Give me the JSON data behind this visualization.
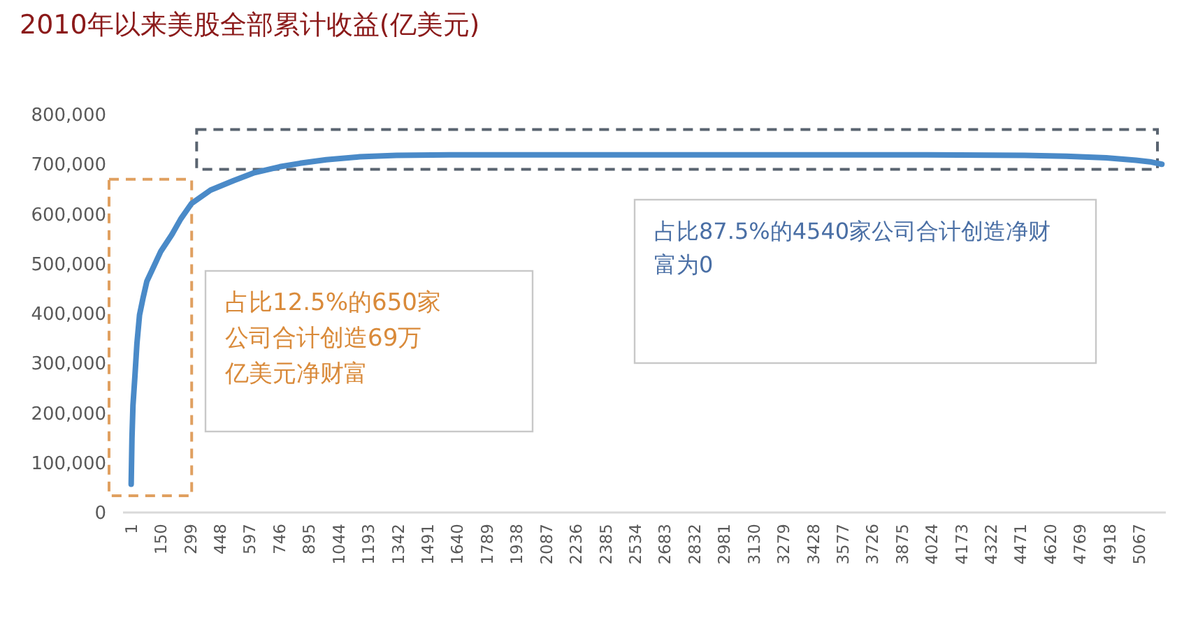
{
  "chart_data": {
    "type": "line",
    "title": "2010年以来美股全部累计收益(亿美元)",
    "x": [
      1,
      5,
      10,
      20,
      30,
      43,
      60,
      80,
      114,
      150,
      206,
      250,
      304,
      400,
      515,
      620,
      748,
      850,
      981,
      1150,
      1334,
      1600,
      2000,
      2500,
      3000,
      3500,
      4000,
      4490,
      4700,
      4900,
      5050,
      5120,
      5180
    ],
    "series": [
      {
        "color": "#4a8ac8",
        "values": [
          57000,
          150000,
          215000,
          275000,
          340000,
          397000,
          430000,
          465000,
          494000,
          525000,
          559000,
          590000,
          621000,
          648000,
          667000,
          683000,
          695000,
          702000,
          709000,
          715000,
          718000,
          719000,
          719000,
          719000,
          719000,
          719000,
          719000,
          718000,
          716000,
          713000,
          708000,
          705000,
          700000
        ]
      }
    ],
    "xlim": [
      -40,
      5200
    ],
    "xticks": [
      1,
      150,
      299,
      448,
      597,
      746,
      895,
      1044,
      1193,
      1342,
      1491,
      1640,
      1789,
      1938,
      2087,
      2236,
      2385,
      2534,
      2683,
      2832,
      2981,
      3130,
      3279,
      3428,
      3577,
      3726,
      3875,
      4024,
      4173,
      4322,
      4471,
      4620,
      4769,
      4918,
      5067
    ],
    "ylim": [
      0,
      800000
    ],
    "yticks": [
      0,
      {
        "value": 100000,
        "label": "100,000"
      },
      {
        "value": 200000,
        "label": "200,000"
      },
      {
        "value": 300000,
        "label": "300,000"
      },
      {
        "value": 400000,
        "label": "400,000"
      },
      {
        "value": 500000,
        "label": "500,000"
      },
      {
        "value": 600000,
        "label": "600,000"
      },
      {
        "value": 700000,
        "label": "700,000"
      },
      {
        "value": 800000,
        "label": "800,000"
      }
    ],
    "grid": false,
    "annotations": [
      "占比12.5%的650家公司合计创造69万亿美元净财富",
      "占比87.5%的4540家公司合计创造净财富为0"
    ]
  }
}
